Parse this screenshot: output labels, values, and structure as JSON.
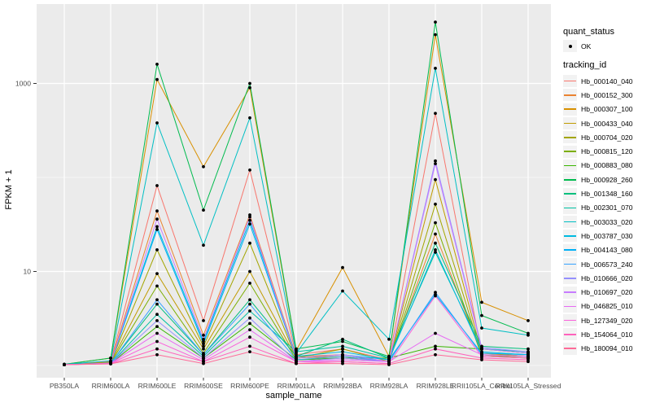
{
  "figure": {
    "background": "#FFFFFF",
    "panel_background": "#EBEBEB",
    "grid_color": "#FFFFFF",
    "tick_text_color": "#4D4D4D",
    "point_color": "#000000"
  },
  "legend": {
    "quant_status_title": "quant_status",
    "quant_status_items": [
      {
        "label": "OK",
        "symbol": "point"
      }
    ],
    "tracking_id_title": "tracking_id"
  },
  "chart_data": {
    "type": "line",
    "title": "",
    "xlabel": "sample_name",
    "ylabel": "FPKM + 1",
    "y_scale": "log10",
    "y_major_ticks": [
      {
        "value": 10,
        "label": "10"
      },
      {
        "value": 1000,
        "label": "1000"
      }
    ],
    "y_minor_gridlines": [
      1,
      100
    ],
    "ylim_log": [
      0.87,
      3.84
    ],
    "grid": "major-and-minor",
    "legend_position": "right",
    "categories": [
      "PB350LA",
      "RRIM600LA",
      "RRIM600LE",
      "RRIM600SE",
      "RRIM600PE",
      "RRIM901LA",
      "RRIM928BA",
      "RRIM928LA",
      "RRIM928LE",
      "RRII105LA_Control",
      "RRII105LA_Stressed"
    ],
    "series": [
      {
        "name": "Hb_000140_040",
        "color": "#F8766D",
        "values": [
          1.02,
          1.1,
          82,
          3.0,
          120,
          1.3,
          1.5,
          1.15,
          480,
          1.35,
          1.25
        ]
      },
      {
        "name": "Hb_000152_300",
        "color": "#EA8331",
        "values": [
          1.02,
          1.08,
          44,
          2.1,
          40,
          1.25,
          1.3,
          1.1,
          25,
          1.3,
          1.2
        ]
      },
      {
        "name": "Hb_000307_100",
        "color": "#D89000",
        "values": [
          1.03,
          1.2,
          1100,
          130,
          900,
          1.45,
          11,
          1.25,
          3300,
          4.7,
          3.0
        ]
      },
      {
        "name": "Hb_000433_040",
        "color": "#C09B00",
        "values": [
          1.02,
          1.08,
          9.5,
          1.5,
          10,
          1.2,
          1.25,
          1.1,
          95,
          1.35,
          1.25
        ]
      },
      {
        "name": "Hb_000704_020",
        "color": "#A3A500",
        "values": [
          1.02,
          1.08,
          17,
          1.6,
          20,
          1.2,
          1.5,
          1.1,
          52,
          1.3,
          1.2
        ]
      },
      {
        "name": "Hb_000815_120",
        "color": "#7CAE00",
        "values": [
          1.02,
          1.06,
          7.0,
          1.35,
          7.5,
          1.15,
          1.2,
          1.1,
          33,
          1.25,
          1.2
        ]
      },
      {
        "name": "Hb_000883_080",
        "color": "#39B600",
        "values": [
          1.02,
          1.05,
          2.6,
          1.2,
          2.8,
          1.15,
          1.2,
          1.2,
          1.6,
          1.5,
          1.35
        ]
      },
      {
        "name": "Hb_000928_260",
        "color": "#00BB4E",
        "values": [
          1.03,
          1.2,
          1600,
          45,
          1000,
          1.5,
          1.8,
          1.25,
          4500,
          3.4,
          2.2
        ]
      },
      {
        "name": "Hb_001348_160",
        "color": "#00BF7D",
        "values": [
          1.02,
          1.06,
          4.5,
          1.3,
          5.0,
          1.25,
          1.9,
          1.2,
          20,
          1.6,
          1.5
        ]
      },
      {
        "name": "Hb_002301_070",
        "color": "#00C1A3",
        "values": [
          1.02,
          1.05,
          3.5,
          1.25,
          3.8,
          1.4,
          1.6,
          1.2,
          16,
          1.5,
          1.4
        ]
      },
      {
        "name": "Hb_003033_020",
        "color": "#00BFC4",
        "values": [
          1.03,
          1.12,
          380,
          19,
          430,
          1.35,
          6.2,
          1.9,
          1450,
          2.5,
          2.1
        ]
      },
      {
        "name": "Hb_003787_030",
        "color": "#00BAE0",
        "values": [
          1.02,
          1.06,
          30,
          1.8,
          35,
          1.25,
          1.4,
          1.15,
          17,
          1.4,
          1.3
        ]
      },
      {
        "name": "Hb_004143_080",
        "color": "#00B0F6",
        "values": [
          1.02,
          1.06,
          28,
          1.7,
          32,
          1.2,
          1.3,
          1.15,
          5.7,
          1.35,
          1.3
        ]
      },
      {
        "name": "Hb_006573_240",
        "color": "#35A2FF",
        "values": [
          1.02,
          1.05,
          5.0,
          1.3,
          4.5,
          1.15,
          1.25,
          1.1,
          6.0,
          1.3,
          1.25
        ]
      },
      {
        "name": "Hb_010666_020",
        "color": "#9590FF",
        "values": [
          1.02,
          1.05,
          3.0,
          1.2,
          3.2,
          1.1,
          1.2,
          1.1,
          150,
          1.55,
          1.4
        ]
      },
      {
        "name": "Hb_010697_020",
        "color": "#C77CFF",
        "values": [
          1.02,
          1.06,
          36,
          1.9,
          38,
          1.2,
          1.3,
          1.1,
          140,
          1.5,
          1.35
        ]
      },
      {
        "name": "Hb_046825_010",
        "color": "#E76BF3",
        "values": [
          1.02,
          1.05,
          2.2,
          1.15,
          2.4,
          1.1,
          1.15,
          1.1,
          2.2,
          1.3,
          1.25
        ]
      },
      {
        "name": "Hb_127349_020",
        "color": "#FA62DB",
        "values": [
          1.02,
          1.05,
          1.8,
          1.1,
          2.0,
          1.1,
          1.1,
          1.05,
          5.5,
          1.25,
          1.2
        ]
      },
      {
        "name": "Hb_154064_010",
        "color": "#FF62BC",
        "values": [
          1.02,
          1.04,
          1.5,
          1.1,
          1.6,
          1.05,
          1.1,
          1.05,
          1.5,
          1.2,
          1.15
        ]
      },
      {
        "name": "Hb_180094_010",
        "color": "#FF6A98",
        "values": [
          1.02,
          1.04,
          1.3,
          1.05,
          1.4,
          1.05,
          1.05,
          1.02,
          1.3,
          1.15,
          1.1
        ]
      }
    ]
  }
}
